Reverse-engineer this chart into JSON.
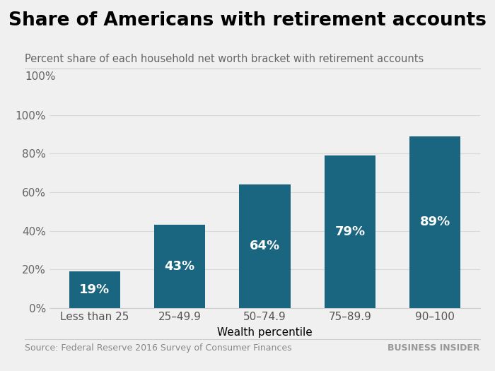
{
  "title": "Share of Americans with retirement accounts",
  "subtitle": "Percent share of each household net worth bracket with retirement accounts",
  "xlabel": "Wealth percentile",
  "categories": [
    "Less than 25",
    "25–49.9",
    "50–74.9",
    "75–89.9",
    "90–100"
  ],
  "values": [
    19,
    43,
    64,
    79,
    89
  ],
  "labels": [
    "19%",
    "43%",
    "64%",
    "79%",
    "89%"
  ],
  "bar_color": "#1a6680",
  "background_color": "#f0f0f0",
  "ylim": [
    0,
    100
  ],
  "yticks": [
    0,
    20,
    40,
    60,
    80,
    100
  ],
  "ytick_labels": [
    "0%",
    "20%",
    "40%",
    "60%",
    "80%",
    "100%"
  ],
  "source_text": "Source: Federal Reserve 2016 Survey of Consumer Finances",
  "brand_text": "BUSINESS INSIDER",
  "title_fontsize": 19,
  "subtitle_fontsize": 10.5,
  "label_fontsize": 13,
  "axis_fontsize": 11,
  "source_fontsize": 9,
  "brand_fontsize": 9
}
